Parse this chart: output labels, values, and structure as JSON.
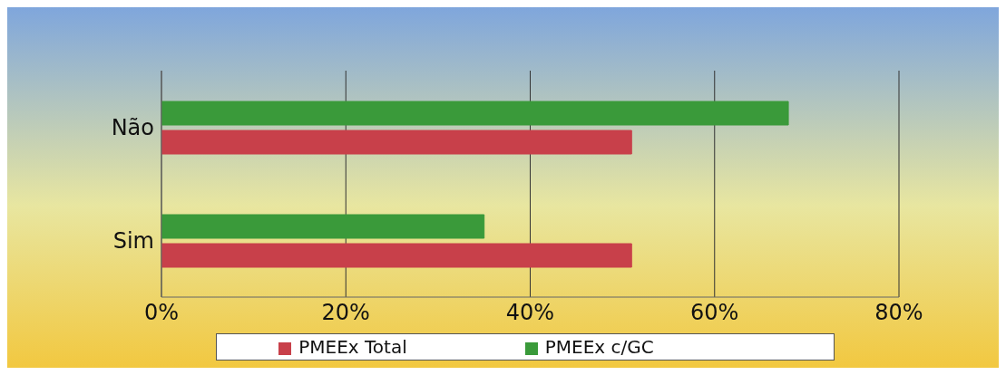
{
  "chart_data": {
    "type": "bar",
    "orientation": "horizontal",
    "categories": [
      "Não",
      "Sim"
    ],
    "series": [
      {
        "name": "PMEEx Total",
        "color": "#c8404a",
        "values": [
          51,
          51
        ]
      },
      {
        "name": "PMEEx c/GC",
        "color": "#3a9a3a",
        "values": [
          68,
          35
        ]
      }
    ],
    "xlim": [
      0,
      80
    ],
    "xticks": [
      {
        "value": 0,
        "label": "0%"
      },
      {
        "value": 20,
        "label": "20%"
      },
      {
        "value": 40,
        "label": "40%"
      },
      {
        "value": 60,
        "label": "60%"
      },
      {
        "value": 80,
        "label": "80%"
      }
    ],
    "grid": "x",
    "legend": "bottom"
  }
}
